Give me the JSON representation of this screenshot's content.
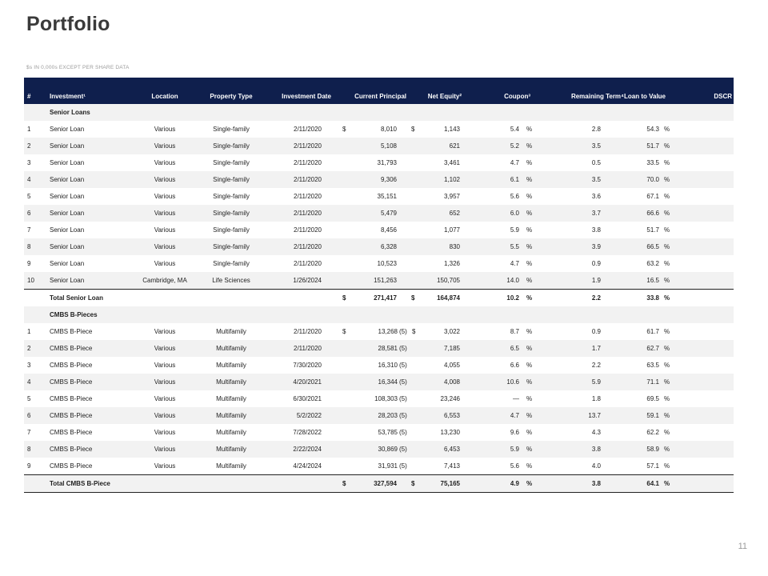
{
  "title": "Portfolio",
  "subtitle": "$s IN 0,000s EXCEPT PER SHARE DATA",
  "page_number": "11",
  "header": {
    "num": "#",
    "investment": "Investment¹",
    "location": "Location",
    "property_type": "Property Type",
    "investment_date": "Investment Date",
    "current_principal": "Current Principal",
    "net_equity": "Net Equity²",
    "coupon": "Coupon³",
    "remaining_term": "Remaining Term⁴",
    "ltv": "Loan to Value",
    "dscr": "DSCR"
  },
  "senior": {
    "section_label": "Senior Loans",
    "rows": [
      {
        "num": "1",
        "name": "Senior Loan",
        "location": "Various",
        "type": "Single-family",
        "date": "2/11/2020",
        "principal": "8,010",
        "equity": "1,143",
        "coupon": "5.4",
        "term": "2.8",
        "ltv": "54.3"
      },
      {
        "num": "2",
        "name": "Senior Loan",
        "location": "Various",
        "type": "Single-family",
        "date": "2/11/2020",
        "principal": "5,108",
        "equity": "621",
        "coupon": "5.2",
        "term": "3.5",
        "ltv": "51.7"
      },
      {
        "num": "3",
        "name": "Senior Loan",
        "location": "Various",
        "type": "Single-family",
        "date": "2/11/2020",
        "principal": "31,793",
        "equity": "3,461",
        "coupon": "4.7",
        "term": "0.5",
        "ltv": "33.5"
      },
      {
        "num": "4",
        "name": "Senior Loan",
        "location": "Various",
        "type": "Single-family",
        "date": "2/11/2020",
        "principal": "9,306",
        "equity": "1,102",
        "coupon": "6.1",
        "term": "3.5",
        "ltv": "70.0"
      },
      {
        "num": "5",
        "name": "Senior Loan",
        "location": "Various",
        "type": "Single-family",
        "date": "2/11/2020",
        "principal": "35,151",
        "equity": "3,957",
        "coupon": "5.6",
        "term": "3.6",
        "ltv": "67.1"
      },
      {
        "num": "6",
        "name": "Senior Loan",
        "location": "Various",
        "type": "Single-family",
        "date": "2/11/2020",
        "principal": "5,479",
        "equity": "652",
        "coupon": "6.0",
        "term": "3.7",
        "ltv": "66.6"
      },
      {
        "num": "7",
        "name": "Senior Loan",
        "location": "Various",
        "type": "Single-family",
        "date": "2/11/2020",
        "principal": "8,456",
        "equity": "1,077",
        "coupon": "5.9",
        "term": "3.8",
        "ltv": "51.7"
      },
      {
        "num": "8",
        "name": "Senior Loan",
        "location": "Various",
        "type": "Single-family",
        "date": "2/11/2020",
        "principal": "6,328",
        "equity": "830",
        "coupon": "5.5",
        "term": "3.9",
        "ltv": "66.5"
      },
      {
        "num": "9",
        "name": "Senior Loan",
        "location": "Various",
        "type": "Single-family",
        "date": "2/11/2020",
        "principal": "10,523",
        "equity": "1,326",
        "coupon": "4.7",
        "term": "0.9",
        "ltv": "63.2"
      },
      {
        "num": "10",
        "name": "Senior Loan",
        "location": "Cambridge, MA",
        "type": "Life Sciences",
        "date": "1/26/2024",
        "principal": "151,263",
        "equity": "150,705",
        "coupon": "14.0",
        "term": "1.9",
        "ltv": "16.5"
      }
    ],
    "total": {
      "label": "Total Senior Loan",
      "principal": "271,417",
      "equity": "164,874",
      "coupon": "10.2",
      "term": "2.2",
      "ltv": "33.8"
    }
  },
  "cmbs": {
    "section_label": "CMBS B-Pieces",
    "rows": [
      {
        "num": "1",
        "name": "CMBS B-Piece",
        "location": "Various",
        "type": "Multifamily",
        "date": "2/11/2020",
        "principal": "13,268",
        "equity": "3,022",
        "coupon": "8.7",
        "term": "0.9",
        "ltv": "61.7"
      },
      {
        "num": "2",
        "name": "CMBS B-Piece",
        "location": "Various",
        "type": "Multifamily",
        "date": "2/11/2020",
        "principal": "28,581",
        "equity": "7,185",
        "coupon": "6.5",
        "term": "1.7",
        "ltv": "62.7"
      },
      {
        "num": "3",
        "name": "CMBS B-Piece",
        "location": "Various",
        "type": "Multifamily",
        "date": "7/30/2020",
        "principal": "16,310",
        "equity": "4,055",
        "coupon": "6.6",
        "term": "2.2",
        "ltv": "63.5"
      },
      {
        "num": "4",
        "name": "CMBS B-Piece",
        "location": "Various",
        "type": "Multifamily",
        "date": "4/20/2021",
        "principal": "16,344",
        "equity": "4,008",
        "coupon": "10.6",
        "term": "5.9",
        "ltv": "71.1"
      },
      {
        "num": "5",
        "name": "CMBS B-Piece",
        "location": "Various",
        "type": "Multifamily",
        "date": "6/30/2021",
        "principal": "108,303",
        "equity": "23,246",
        "coupon": "—",
        "term": "1.8",
        "ltv": "69.5"
      },
      {
        "num": "6",
        "name": "CMBS B-Piece",
        "location": "Various",
        "type": "Multifamily",
        "date": "5/2/2022",
        "principal": "28,203",
        "equity": "6,553",
        "coupon": "4.7",
        "term": "13.7",
        "ltv": "59.1"
      },
      {
        "num": "7",
        "name": "CMBS B-Piece",
        "location": "Various",
        "type": "Multifamily",
        "date": "7/28/2022",
        "principal": "53,785",
        "equity": "13,230",
        "coupon": "9.6",
        "term": "4.3",
        "ltv": "62.2"
      },
      {
        "num": "8",
        "name": "CMBS B-Piece",
        "location": "Various",
        "type": "Multifamily",
        "date": "2/22/2024",
        "principal": "30,869",
        "equity": "6,453",
        "coupon": "5.9",
        "term": "3.8",
        "ltv": "58.9"
      },
      {
        "num": "9",
        "name": "CMBS B-Piece",
        "location": "Various",
        "type": "Multifamily",
        "date": "4/24/2024",
        "principal": "31,931",
        "equity": "7,413",
        "coupon": "5.6",
        "term": "4.0",
        "ltv": "57.1"
      }
    ],
    "footnote_marker": "(5)",
    "total": {
      "label": "Total CMBS B-Piece",
      "principal": "327,594",
      "equity": "75,165",
      "coupon": "4.9",
      "term": "3.8",
      "ltv": "64.1"
    }
  },
  "symbols": {
    "dollar": "$",
    "percent": "%"
  },
  "colors": {
    "header_bg": "#0f1f4d",
    "row_shade": "#f2f2f2"
  }
}
